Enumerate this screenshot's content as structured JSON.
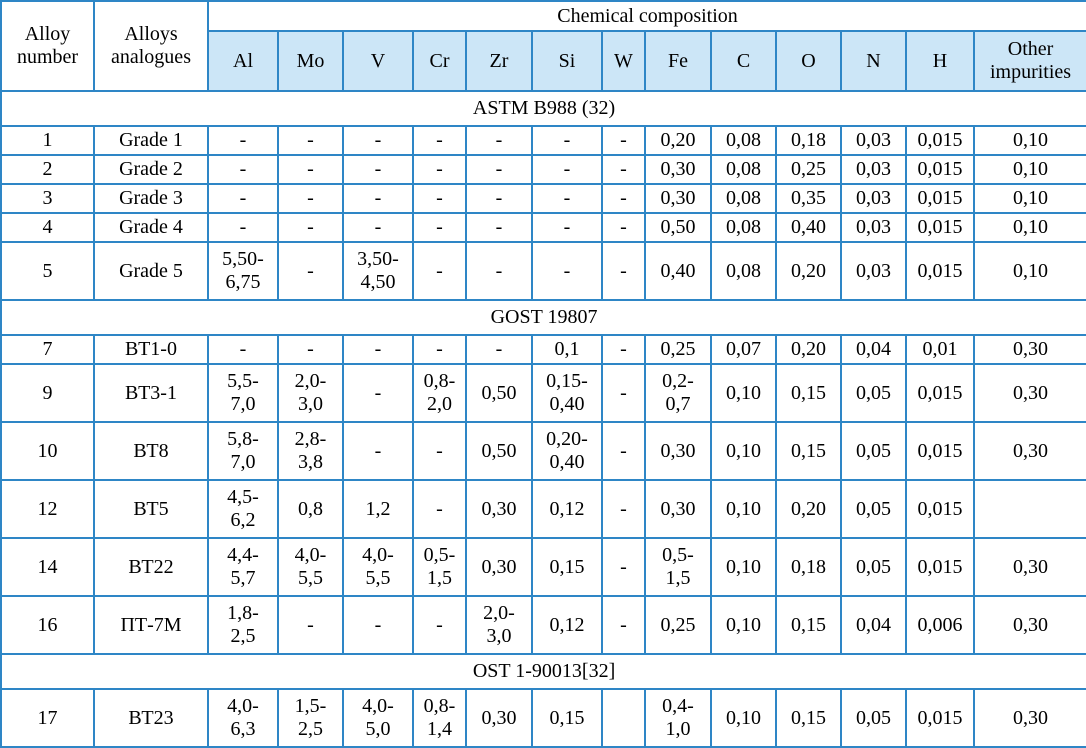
{
  "table": {
    "header": {
      "alloy_number": "Alloy\nnumber",
      "alloys_analogues": "Alloys\nanalogues",
      "chemical_composition": "Chemical composition",
      "elements": [
        "Al",
        "Mo",
        "V",
        "Cr",
        "Zr",
        "Si",
        "W",
        "Fe",
        "C",
        "O",
        "N",
        "H",
        "Other\nimpurities"
      ]
    },
    "sections": [
      {
        "title": "ASTM B988 (32)",
        "rows": [
          {
            "number": "1",
            "analogue": "Grade 1",
            "values": [
              "-",
              "-",
              "-",
              "-",
              "-",
              "-",
              "-",
              "0,20",
              "0,08",
              "0,18",
              "0,03",
              "0,015",
              "0,10"
            ]
          },
          {
            "number": "2",
            "analogue": "Grade 2",
            "values": [
              "-",
              "-",
              "-",
              "-",
              "-",
              "-",
              "-",
              "0,30",
              "0,08",
              "0,25",
              "0,03",
              "0,015",
              "0,10"
            ]
          },
          {
            "number": "3",
            "analogue": "Grade 3",
            "values": [
              "-",
              "-",
              "-",
              "-",
              "-",
              "-",
              "-",
              "0,30",
              "0,08",
              "0,35",
              "0,03",
              "0,015",
              "0,10"
            ]
          },
          {
            "number": "4",
            "analogue": "Grade 4",
            "values": [
              "-",
              "-",
              "-",
              "-",
              "-",
              "-",
              "-",
              "0,50",
              "0,08",
              "0,40",
              "0,03",
              "0,015",
              "0,10"
            ]
          },
          {
            "number": "5",
            "analogue": "Grade 5",
            "values": [
              "5,50-\n6,75",
              "-",
              "3,50-\n4,50",
              "-",
              "-",
              "-",
              "-",
              "0,40",
              "0,08",
              "0,20",
              "0,03",
              "0,015",
              "0,10"
            ]
          }
        ]
      },
      {
        "title": "GOST 19807",
        "rows": [
          {
            "number": "7",
            "analogue": "ВТ1-0",
            "values": [
              "-",
              "-",
              "-",
              "-",
              "-",
              "0,1",
              "-",
              "0,25",
              "0,07",
              "0,20",
              "0,04",
              "0,01",
              "0,30"
            ]
          },
          {
            "number": "9",
            "analogue": "ВТ3-1",
            "values": [
              "5,5-\n7,0",
              "2,0-\n3,0",
              "-",
              "0,8-\n2,0",
              "0,50",
              "0,15-\n0,40",
              "-",
              "0,2-\n0,7",
              "0,10",
              "0,15",
              "0,05",
              "0,015",
              "0,30"
            ]
          },
          {
            "number": "10",
            "analogue": "ВТ8",
            "values": [
              "5,8-\n7,0",
              "2,8-\n3,8",
              "-",
              "-",
              "0,50",
              "0,20-\n0,40",
              "-",
              "0,30",
              "0,10",
              "0,15",
              "0,05",
              "0,015",
              "0,30"
            ],
            "top_aligned": [
              8,
              11
            ]
          },
          {
            "number": "12",
            "analogue": "ВТ5",
            "values": [
              "4,5-\n6,2",
              "0,8",
              "1,2",
              "-",
              "0,30",
              "0,12",
              "-",
              "0,30",
              "0,10",
              "0,20",
              "0,05",
              "0,015",
              ""
            ],
            "top_aligned": [
              8,
              11
            ]
          },
          {
            "number": "14",
            "analogue": "ВТ22",
            "values": [
              "4,4-\n5,7",
              "4,0-\n5,5",
              "4,0-\n5,5",
              "0,5-\n1,5",
              "0,30",
              "0,15",
              "-",
              "0,5-\n1,5",
              "0,10",
              "0,18",
              "0,05",
              "0,015",
              "0,30"
            ],
            "top_aligned": [
              11
            ]
          },
          {
            "number": "16",
            "analogue": "ПТ-7М",
            "values": [
              "1,8-\n2,5",
              "-",
              "-",
              "-",
              "2,0-\n3,0",
              "0,12",
              "-",
              "0,25",
              "0,10",
              "0,15",
              "0,04",
              "0,006",
              "0,30"
            ]
          }
        ]
      },
      {
        "title": "OST 1-90013[32]",
        "rows": [
          {
            "number": "17",
            "analogue": "ВТ23",
            "values": [
              "4,0-\n6,3",
              "1,5-\n2,5",
              "4,0-\n5,0",
              "0,8-\n1,4",
              "0,30",
              "0,15",
              "",
              "0,4-\n1,0",
              "0,10",
              "0,15",
              "0,05",
              "0,015",
              "0,30"
            ]
          }
        ]
      }
    ]
  },
  "colors": {
    "inner_border": "#2e86c6",
    "outer_border": "#2e75b6",
    "header_fill": "#cce6f7",
    "text": "#000000"
  }
}
